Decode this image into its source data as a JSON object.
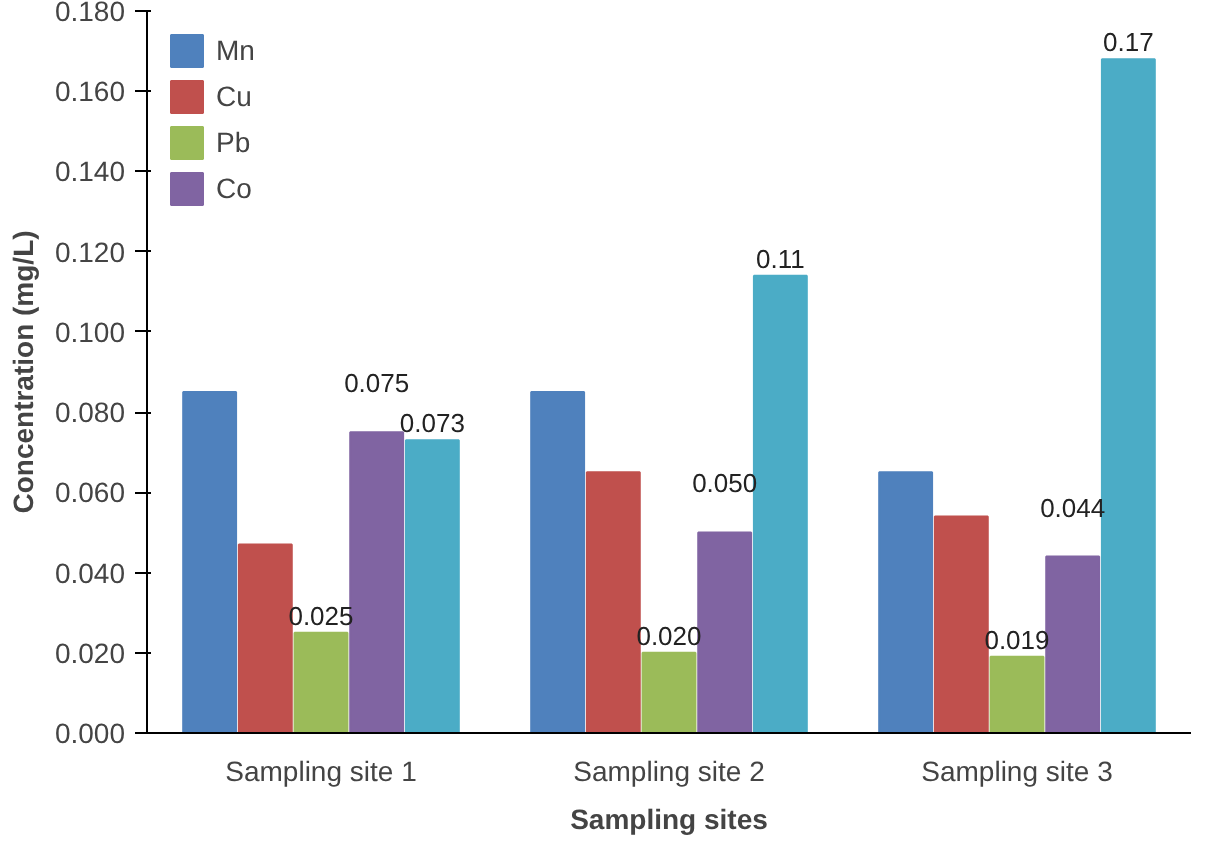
{
  "chart_data": {
    "type": "bar",
    "xlabel": "Sampling sites",
    "ylabel": "Concentration (mg/L)",
    "categories": [
      "Sampling site 1",
      "Sampling site 2",
      "Sampling site 3"
    ],
    "series": [
      {
        "name": "Mn",
        "color": "#4f81bd",
        "values": [
          0.085,
          0.085,
          0.065
        ]
      },
      {
        "name": "Cu",
        "color": "#c0504d",
        "values": [
          0.047,
          0.065,
          0.054
        ]
      },
      {
        "name": "Pb",
        "color": "#9bbb59",
        "values": [
          0.025,
          0.02,
          0.019
        ],
        "value_labels": [
          "0.025",
          "0.020",
          "0.019"
        ]
      },
      {
        "name": "Co",
        "color": "#8064a2",
        "values": [
          0.075,
          0.05,
          0.044
        ],
        "value_labels": [
          "0.075",
          "0.050",
          "0.044"
        ]
      },
      {
        "color": "#4bacc6",
        "values": [
          0.073,
          0.114,
          0.168
        ],
        "value_labels": [
          "0.073",
          "0.11",
          "0.17"
        ]
      }
    ],
    "ylim": [
      0,
      0.18
    ],
    "yticks": [
      {
        "value": 0,
        "label": "0.000"
      },
      {
        "value": 0.02,
        "label": "0.020"
      },
      {
        "value": 0.04,
        "label": "0.040"
      },
      {
        "value": 0.06,
        "label": "0.060"
      },
      {
        "value": 0.08,
        "label": "0.080"
      },
      {
        "value": 0.1,
        "label": "0.100"
      },
      {
        "value": 0.12,
        "label": "0.120"
      },
      {
        "value": 0.14,
        "label": "0.140"
      },
      {
        "value": 0.16,
        "label": "0.160"
      },
      {
        "value": 0.18,
        "label": "0.180"
      }
    ],
    "grid": false,
    "legend": "top left"
  }
}
